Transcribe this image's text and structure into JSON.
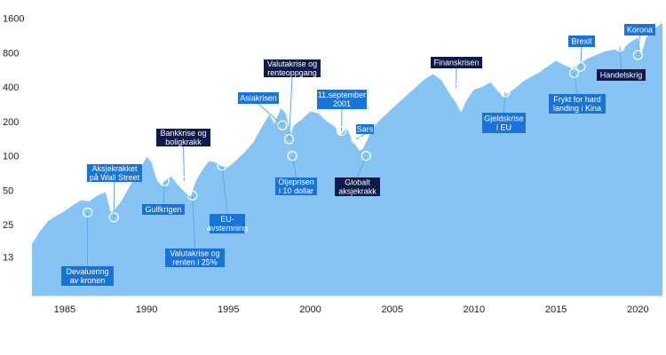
{
  "chart_data": {
    "type": "area",
    "scale_y": "log",
    "ylim": [
      6,
      2000
    ],
    "xlim": [
      1983,
      2021.5
    ],
    "grid": false,
    "colors": {
      "area": "#88c4f3",
      "callout_light": "#1a74d8",
      "callout_dark": "#0e1a4a",
      "leader": "#5aa8e6",
      "marker": "#ffffff"
    },
    "x_ticks": [
      1985,
      1990,
      1995,
      2000,
      2005,
      2010,
      2015,
      2020
    ],
    "y_ticks": [
      13,
      25,
      50,
      100,
      200,
      400,
      800,
      1600
    ],
    "x": [
      1983.0,
      1983.5,
      1984.0,
      1984.5,
      1985.0,
      1985.5,
      1986.0,
      1986.5,
      1987.0,
      1987.5,
      1987.8,
      1988.0,
      1988.5,
      1989.0,
      1989.5,
      1990.0,
      1990.3,
      1990.6,
      1990.9,
      1991.2,
      1991.5,
      1991.8,
      1992.1,
      1992.4,
      1992.7,
      1993.0,
      1993.4,
      1993.8,
      1994.2,
      1994.6,
      1995.0,
      1995.5,
      1996.0,
      1996.5,
      1997.0,
      1997.5,
      1997.8,
      1998.2,
      1998.5,
      1998.8,
      1999.0,
      1999.5,
      2000.0,
      2000.5,
      2001.0,
      2001.5,
      2001.8,
      2002.2,
      2002.6,
      2003.0,
      2003.2,
      2003.6,
      2004.0,
      2005.0,
      2006.0,
      2007.0,
      2007.5,
      2008.0,
      2008.5,
      2008.9,
      2009.2,
      2009.5,
      2010.0,
      2010.5,
      2011.0,
      2011.5,
      2011.8,
      2012.5,
      2013.0,
      2014.0,
      2015.0,
      2015.5,
      2016.0,
      2016.5,
      2017.0,
      2018.0,
      2018.5,
      2019.0,
      2019.5,
      2020.0,
      2020.2,
      2020.5,
      2021.0,
      2021.5
    ],
    "y": [
      17,
      22,
      27,
      30,
      33,
      37,
      41,
      40,
      45,
      48,
      32,
      33,
      41,
      55,
      72,
      98,
      88,
      62,
      55,
      62,
      66,
      58,
      52,
      47,
      44,
      60,
      75,
      90,
      88,
      80,
      80,
      92,
      108,
      130,
      175,
      230,
      190,
      260,
      235,
      155,
      185,
      210,
      245,
      235,
      200,
      180,
      150,
      175,
      135,
      110,
      115,
      150,
      190,
      260,
      350,
      470,
      520,
      460,
      350,
      290,
      240,
      300,
      380,
      400,
      440,
      360,
      330,
      390,
      450,
      540,
      680,
      620,
      580,
      650,
      720,
      820,
      850,
      840,
      980,
      1080,
      760,
      1080,
      1300,
      1450
    ],
    "annotations": [
      {
        "label": "Devaluering av kronen",
        "x": 1986.4,
        "y": 32,
        "style": "light"
      },
      {
        "label": "Aksjekrakket på Wall Street",
        "x": 1988.0,
        "y": 29,
        "style": "light"
      },
      {
        "label": "Bankkrise og boligkrakk",
        "x": 1992.3,
        "y": 60,
        "style": "dark"
      },
      {
        "label": "Gulfkrigen",
        "x": 1991.1,
        "y": 60,
        "style": "light"
      },
      {
        "label": "Valutakrise og renten i 25%",
        "x": 1992.8,
        "y": 45,
        "style": "light"
      },
      {
        "label": "EU-avstemning",
        "x": 1994.6,
        "y": 82,
        "style": "light"
      },
      {
        "label": "Valutakrise og renteoppgang",
        "x": 1998.7,
        "y": 140,
        "style": "dark"
      },
      {
        "label": "Asiakrisen",
        "x": 1998.3,
        "y": 185,
        "style": "light"
      },
      {
        "label": "Oljeprisen i 10 dollar",
        "x": 1998.9,
        "y": 100,
        "style": "light"
      },
      {
        "label": "11.september 2001",
        "x": 2001.9,
        "y": 165,
        "style": "light"
      },
      {
        "label": "Sars",
        "x": 2002.8,
        "y": 140,
        "style": "light"
      },
      {
        "label": "Globalt aksjekrakk",
        "x": 2003.4,
        "y": 100,
        "style": "dark"
      },
      {
        "label": "Finanskrisen",
        "x": 2008.9,
        "y": 390,
        "style": "dark"
      },
      {
        "label": "Gjeldskrise i EU",
        "x": 2011.9,
        "y": 360,
        "style": "light"
      },
      {
        "label": "Frykt for hard landing i Kina",
        "x": 2016.1,
        "y": 530,
        "style": "light"
      },
      {
        "label": "Brexit",
        "x": 2016.5,
        "y": 600,
        "style": "light"
      },
      {
        "label": "Handelskrig",
        "x": 2018.9,
        "y": 900,
        "style": "dark"
      },
      {
        "label": "Korona",
        "x": 2020.0,
        "y": 760,
        "style": "light"
      }
    ]
  }
}
